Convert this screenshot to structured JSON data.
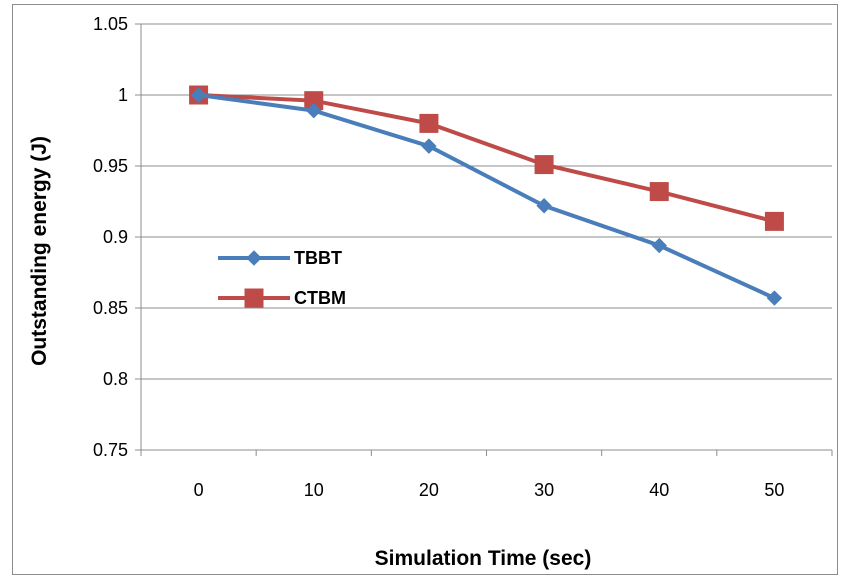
{
  "chart_data": {
    "type": "line",
    "title": "",
    "xlabel": "Simulation Time (sec)",
    "ylabel": "Outstanding energy (J)",
    "categories": [
      "0",
      "10",
      "20",
      "30",
      "40",
      "50"
    ],
    "ylim": [
      0.75,
      1.05
    ],
    "yticks": [
      "0.75",
      "0.8",
      "0.85",
      "0.9",
      "0.95",
      "1",
      "1.05"
    ],
    "grid": true,
    "legend": "left-middle",
    "series": [
      {
        "name": "TBBT",
        "marker": "diamond",
        "color": "#4a7ebb",
        "values": [
          1.0,
          0.989,
          0.964,
          0.922,
          0.894,
          0.857
        ]
      },
      {
        "name": "CTBM",
        "marker": "square",
        "color": "#be4b48",
        "values": [
          1.0,
          0.996,
          0.98,
          0.951,
          0.932,
          0.911
        ]
      }
    ]
  }
}
